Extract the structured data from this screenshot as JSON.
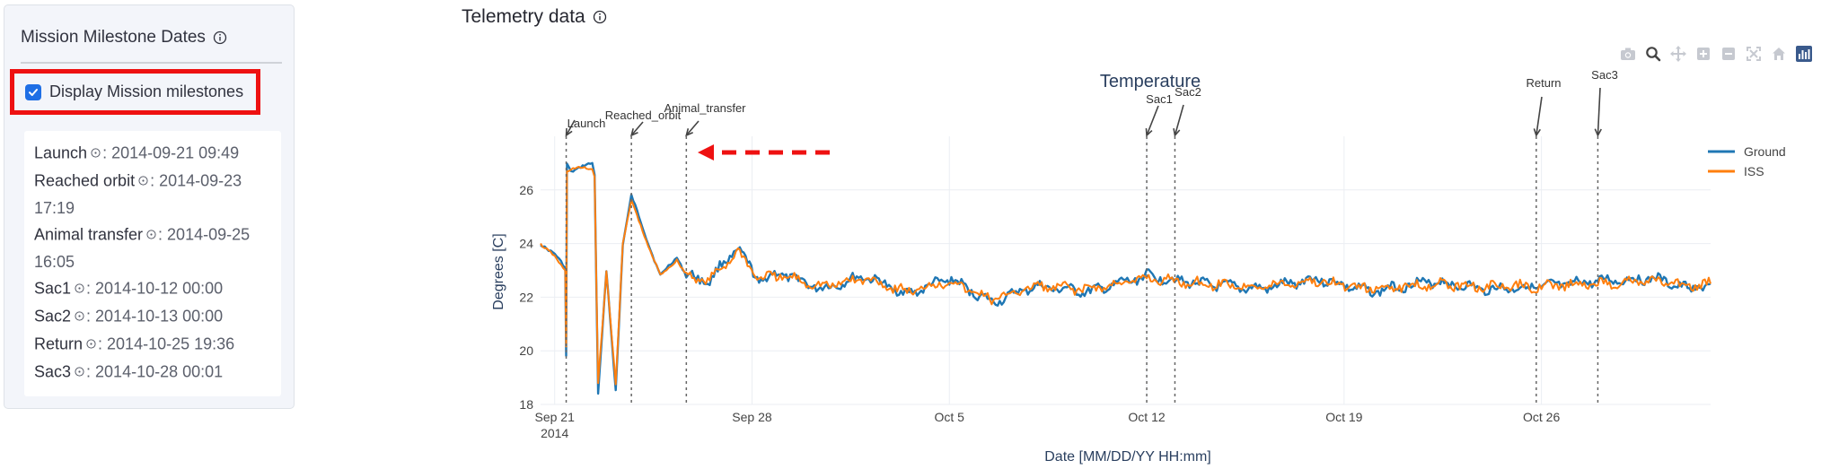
{
  "sidebar": {
    "title": "Mission Milestone Dates",
    "toggle_label": "Display Mission milestones",
    "toggle_checked": true,
    "dates": [
      {
        "name": "Launch",
        "value": ": 2014-09-21 09:49"
      },
      {
        "name": "Reached orbit",
        "value": ": 2014-09-23 17:19"
      },
      {
        "name": "Animal transfer",
        "value": ": 2014-09-25 16:05"
      },
      {
        "name": "Sac1",
        "value": ": 2014-10-12 00:00"
      },
      {
        "name": "Sac2",
        "value": ": 2014-10-13 00:00"
      },
      {
        "name": "Return",
        "value": ": 2014-10-25 19:36"
      },
      {
        "name": "Sac3",
        "value": ": 2014-10-28 00:01"
      }
    ]
  },
  "main": {
    "title": "Telemetry data"
  },
  "modebar": [
    "camera-icon",
    "zoom-icon",
    "pan-icon",
    "zoom-in-icon",
    "zoom-out-icon",
    "autoscale-icon",
    "reset-axes-icon",
    "plotly-logo-icon"
  ],
  "chart_data": {
    "type": "line",
    "title": "Temperature",
    "xlabel": "Date [MM/DD/YY HH:mm]",
    "ylabel": "Degrees [C]",
    "x_range": [
      "2014-09-20 12:00",
      "2014-11-01 00:00"
    ],
    "ylim": [
      18,
      28
    ],
    "yticks": [
      18,
      20,
      22,
      24,
      26
    ],
    "xticks": [
      {
        "date": "2014-09-21 00:00",
        "label": "Sep 21",
        "sublabel": "2014"
      },
      {
        "date": "2014-09-28 00:00",
        "label": "Sep 28"
      },
      {
        "date": "2014-10-05 00:00",
        "label": "Oct 5"
      },
      {
        "date": "2014-10-12 00:00",
        "label": "Oct 12"
      },
      {
        "date": "2014-10-19 00:00",
        "label": "Oct 19"
      },
      {
        "date": "2014-10-26 00:00",
        "label": "Oct 26"
      }
    ],
    "grid": true,
    "legend_position": "top-right",
    "series": [
      {
        "name": "Ground",
        "color": "#1f77b4",
        "points": [
          [
            "2014-09-20 12:00",
            24.0
          ],
          [
            "2014-09-21 00:00",
            23.6
          ],
          [
            "2014-09-21 09:00",
            23.1
          ],
          [
            "2014-09-21 09:49",
            19.8
          ],
          [
            "2014-09-21 10:30",
            27.0
          ],
          [
            "2014-09-21 14:00",
            26.7
          ],
          [
            "2014-09-22 08:00",
            27.0
          ],
          [
            "2014-09-22 10:00",
            26.6
          ],
          [
            "2014-09-22 13:00",
            18.4
          ],
          [
            "2014-09-22 20:00",
            23.0
          ],
          [
            "2014-09-23 04:00",
            18.5
          ],
          [
            "2014-09-23 10:00",
            24.0
          ],
          [
            "2014-09-23 17:19",
            25.8
          ],
          [
            "2014-09-24 06:00",
            24.2
          ],
          [
            "2014-09-24 18:00",
            22.8
          ],
          [
            "2014-09-25 08:00",
            23.5
          ],
          [
            "2014-09-25 16:05",
            22.8
          ],
          [
            "2014-09-26 12:00",
            22.6
          ],
          [
            "2014-09-27 00:00",
            23.3
          ],
          [
            "2014-09-27 12:00",
            23.8
          ],
          [
            "2014-09-28 06:00",
            22.6
          ],
          [
            "2014-09-29 00:00",
            22.9
          ],
          [
            "2014-09-30 12:00",
            22.3
          ],
          [
            "2014-10-02 00:00",
            22.8
          ],
          [
            "2014-10-03 12:00",
            22.1
          ],
          [
            "2014-10-05 00:00",
            22.7
          ],
          [
            "2014-10-06 12:00",
            21.8
          ],
          [
            "2014-10-08 00:00",
            22.4
          ],
          [
            "2014-10-10 00:00",
            22.2
          ],
          [
            "2014-10-12 00:00",
            22.8
          ],
          [
            "2014-10-14 00:00",
            22.5
          ],
          [
            "2014-10-16 00:00",
            22.3
          ],
          [
            "2014-10-18 00:00",
            22.7
          ],
          [
            "2014-10-20 00:00",
            22.2
          ],
          [
            "2014-10-22 00:00",
            22.6
          ],
          [
            "2014-10-24 00:00",
            22.3
          ],
          [
            "2014-10-26 00:00",
            22.4
          ],
          [
            "2014-10-28 00:00",
            22.6
          ],
          [
            "2014-10-30 00:00",
            22.7
          ],
          [
            "2014-10-31 06:00",
            22.3
          ],
          [
            "2014-11-01 00:00",
            22.5
          ]
        ]
      },
      {
        "name": "ISS",
        "color": "#ff7f0e",
        "points": [
          [
            "2014-09-20 12:00",
            24.0
          ],
          [
            "2014-09-21 00:00",
            23.5
          ],
          [
            "2014-09-21 09:00",
            23.0
          ],
          [
            "2014-09-21 09:49",
            20.2
          ],
          [
            "2014-09-21 10:30",
            26.7
          ],
          [
            "2014-09-21 14:00",
            26.8
          ],
          [
            "2014-09-22 08:00",
            26.8
          ],
          [
            "2014-09-22 10:00",
            26.5
          ],
          [
            "2014-09-22 13:00",
            18.8
          ],
          [
            "2014-09-22 20:00",
            22.9
          ],
          [
            "2014-09-23 04:00",
            18.8
          ],
          [
            "2014-09-23 10:00",
            24.0
          ],
          [
            "2014-09-23 17:19",
            25.6
          ],
          [
            "2014-09-24 06:00",
            24.1
          ],
          [
            "2014-09-24 18:00",
            22.8
          ],
          [
            "2014-09-25 08:00",
            23.4
          ],
          [
            "2014-09-25 16:05",
            22.8
          ],
          [
            "2014-09-26 12:00",
            22.6
          ],
          [
            "2014-09-27 00:00",
            23.2
          ],
          [
            "2014-09-27 12:00",
            23.7
          ],
          [
            "2014-09-28 06:00",
            22.7
          ],
          [
            "2014-09-29 00:00",
            22.8
          ],
          [
            "2014-09-30 12:00",
            22.4
          ],
          [
            "2014-10-02 00:00",
            22.7
          ],
          [
            "2014-10-03 12:00",
            22.2
          ],
          [
            "2014-10-05 00:00",
            22.6
          ],
          [
            "2014-10-06 12:00",
            21.9
          ],
          [
            "2014-10-08 00:00",
            22.4
          ],
          [
            "2014-10-10 00:00",
            22.3
          ],
          [
            "2014-10-12 00:00",
            22.7
          ],
          [
            "2014-10-14 00:00",
            22.5
          ],
          [
            "2014-10-16 00:00",
            22.4
          ],
          [
            "2014-10-18 00:00",
            22.6
          ],
          [
            "2014-10-20 00:00",
            22.3
          ],
          [
            "2014-10-22 00:00",
            22.5
          ],
          [
            "2014-10-24 00:00",
            22.4
          ],
          [
            "2014-10-26 00:00",
            22.4
          ],
          [
            "2014-10-28 00:00",
            22.5
          ],
          [
            "2014-10-30 00:00",
            22.6
          ],
          [
            "2014-10-31 06:00",
            22.4
          ],
          [
            "2014-11-01 00:00",
            22.5
          ]
        ]
      }
    ],
    "milestones": [
      {
        "label": "Launch",
        "date": "2014-09-21 09:49"
      },
      {
        "label": "Reached_orbit",
        "date": "2014-09-23 17:19"
      },
      {
        "label": "Animal_transfer",
        "date": "2014-09-25 16:05"
      },
      {
        "label": "Sac1",
        "date": "2014-10-12 00:00"
      },
      {
        "label": "Sac2",
        "date": "2014-10-13 00:00"
      },
      {
        "label": "Return",
        "date": "2014-10-25 19:36"
      },
      {
        "label": "Sac3",
        "date": "2014-10-28 00:01"
      }
    ]
  }
}
